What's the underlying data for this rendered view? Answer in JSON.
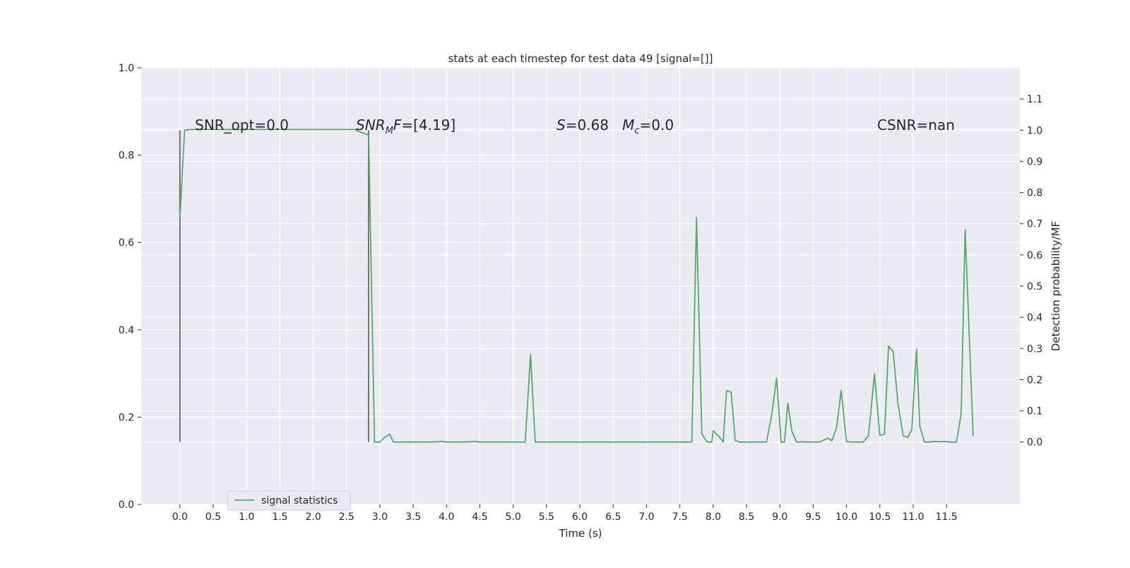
{
  "chart_data": {
    "type": "line",
    "title": "stats at each timestep for test data 49 [signal=[]]",
    "xlabel": "Time (s)",
    "ylabel": "",
    "y2label": "Detection probability/MF",
    "xlim": [
      -0.58,
      12.6
    ],
    "ylim": [
      0.0,
      1.0
    ],
    "y2lim": [
      -0.2,
      1.2
    ],
    "grid": true,
    "legend_position": "lower-left",
    "x_tick_values": [
      0.0,
      0.5,
      1.0,
      1.5,
      2.0,
      2.5,
      3.0,
      3.5,
      4.0,
      4.5,
      5.0,
      5.5,
      6.0,
      6.5,
      7.0,
      7.5,
      8.0,
      8.5,
      9.0,
      9.5,
      10.0,
      10.5,
      11.0,
      11.5
    ],
    "x_tick_labels": [
      "0.0",
      "0.5",
      "1.0",
      "1.5",
      "2.0",
      "2.5",
      "3.0",
      "3.5",
      "4.0",
      "4.5",
      "5.0",
      "5.5",
      "6.0",
      "6.5",
      "7.0",
      "7.5",
      "8.0",
      "8.5",
      "9.0",
      "9.5",
      "10.0",
      "10.5",
      "11.0",
      "11.5"
    ],
    "y_tick_values": [
      0.0,
      0.2,
      0.4,
      0.6,
      0.8,
      1.0
    ],
    "y_tick_labels": [
      "0.0",
      "0.2",
      "0.4",
      "0.6",
      "0.8",
      "1.0"
    ],
    "y2_tick_values": [
      0.0,
      0.1,
      0.2,
      0.3,
      0.4,
      0.5,
      0.6,
      0.7,
      0.8,
      0.9,
      1.0,
      1.1
    ],
    "y2_tick_labels": [
      "0.0",
      "0.1",
      "0.2",
      "0.3",
      "0.4",
      "0.5",
      "0.6",
      "0.7",
      "0.8",
      "0.9",
      "1.0",
      "1.1"
    ],
    "colors": {
      "series": "#55a868",
      "vline": "#666666",
      "plot_bg": "#eaeaf2",
      "grid": "#ffffff"
    },
    "vlines": [
      {
        "x": 0.0,
        "y2_from": 0.0,
        "y2_to": 1.0
      },
      {
        "x": 2.83,
        "y2_from": 0.0,
        "y2_to": 1.0
      }
    ],
    "annotations": [
      {
        "text": "SNR_opt=0.0",
        "x": 0.2,
        "y2": 1.0
      },
      {
        "text": "SNR_MF=[4.19]",
        "x": 2.6,
        "y2": 1.0
      },
      {
        "text": "S=0.68   M_c=0.0",
        "x": 5.6,
        "y2": 1.0
      },
      {
        "text": "CSNR=nan",
        "x": 10.4,
        "y2": 1.0
      }
    ],
    "series": [
      {
        "name": "signal statistics",
        "axis": "y2",
        "x": [
          0.0,
          0.07,
          0.15,
          0.25,
          0.35,
          0.5,
          1.0,
          1.5,
          2.0,
          2.5,
          2.62,
          2.75,
          2.83,
          2.92,
          3.0,
          3.07,
          3.15,
          3.2,
          3.25,
          3.5,
          3.75,
          3.85,
          3.92,
          4.0,
          4.25,
          4.35,
          4.42,
          4.5,
          4.75,
          5.0,
          5.18,
          5.26,
          5.33,
          5.4,
          5.75,
          6.0,
          6.5,
          7.0,
          7.5,
          7.6,
          7.68,
          7.75,
          7.83,
          7.91,
          7.98,
          8.0,
          8.08,
          8.15,
          8.2,
          8.27,
          8.33,
          8.4,
          8.5,
          8.65,
          8.8,
          8.88,
          8.95,
          9.02,
          9.07,
          9.12,
          9.18,
          9.25,
          9.32,
          9.4,
          9.5,
          9.6,
          9.72,
          9.78,
          9.85,
          9.92,
          10.0,
          10.07,
          10.15,
          10.25,
          10.33,
          10.42,
          10.5,
          10.57,
          10.63,
          10.7,
          10.77,
          10.85,
          10.92,
          10.98,
          11.05,
          11.1,
          11.17,
          11.25,
          11.32,
          11.4,
          11.48,
          11.55,
          11.65,
          11.72,
          11.78,
          11.9
        ],
        "values": [
          0.72,
          1.0,
          1.002,
          1.002,
          1.002,
          1.002,
          1.002,
          1.002,
          1.002,
          1.002,
          1.002,
          0.99,
          0.985,
          0.0,
          0.0,
          0.015,
          0.025,
          0.0,
          0.0,
          0.0,
          0.0,
          0.001,
          0.002,
          0.0,
          0.0,
          0.001,
          0.002,
          0.0,
          0.0,
          0.0,
          0.0,
          0.28,
          0.0,
          0.0,
          0.0,
          0.0,
          0.0,
          0.0,
          0.0,
          0.0,
          0.001,
          0.72,
          0.025,
          0.0,
          0.0,
          0.036,
          0.02,
          0.0,
          0.165,
          0.16,
          0.005,
          0.0,
          0.0,
          0.0,
          0.0,
          0.09,
          0.205,
          0.0,
          0.0,
          0.125,
          0.035,
          0.0,
          0.001,
          0.0,
          0.0,
          0.0,
          0.013,
          0.004,
          0.045,
          0.165,
          0.002,
          0.0,
          0.0,
          0.0,
          0.02,
          0.218,
          0.022,
          0.025,
          0.308,
          0.29,
          0.125,
          0.02,
          0.015,
          0.04,
          0.298,
          0.05,
          0.0,
          0.0,
          0.002,
          0.001,
          0.002,
          0.0,
          0.0,
          0.09,
          0.68,
          0.02
        ]
      }
    ]
  }
}
